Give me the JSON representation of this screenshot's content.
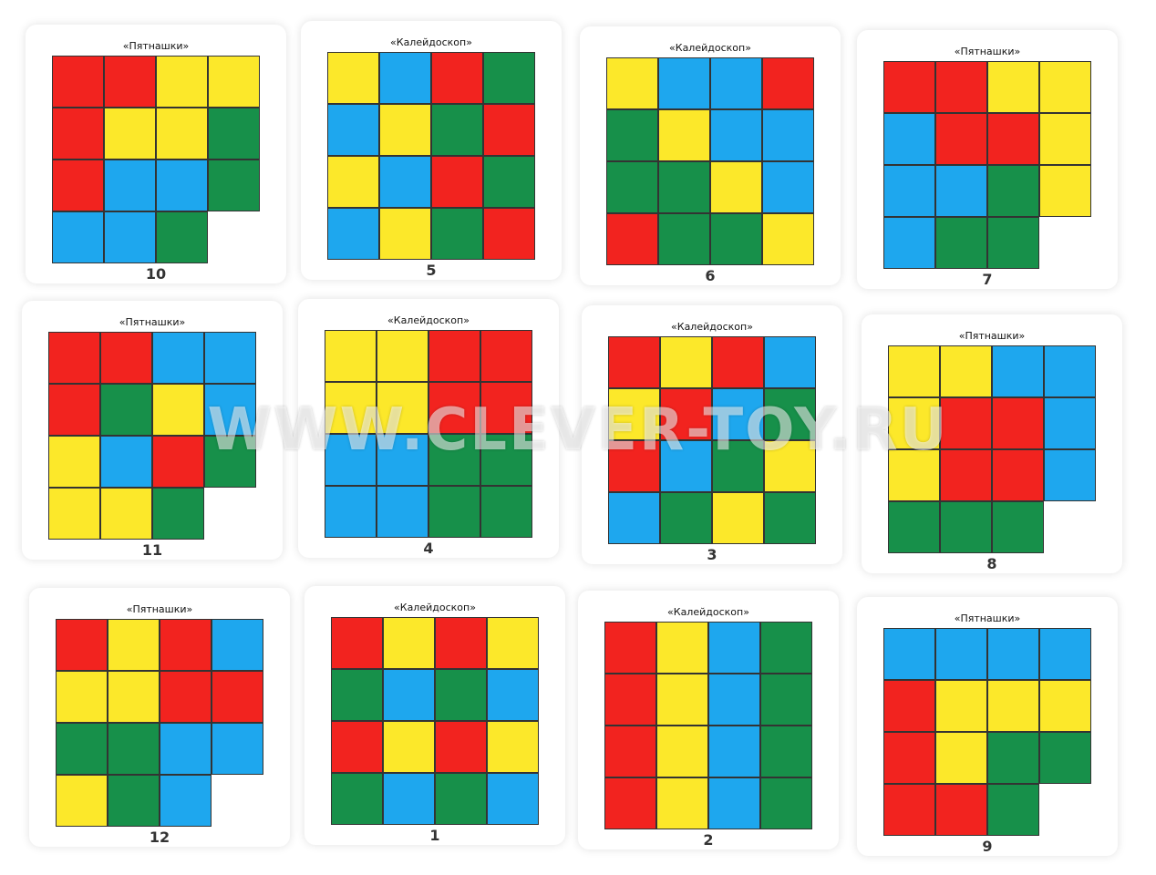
{
  "colors": {
    "R": "#f2231f",
    "Y": "#fce82a",
    "B": "#1ea7ee",
    "G": "#17904a"
  },
  "watermark": "WWW.CLEVER-TOY.RU",
  "cards": [
    {
      "title": "«Пятнашки»",
      "number": "10",
      "grid": [
        "RRYY",
        "RYYG",
        "RBBG",
        "BBG_"
      ]
    },
    {
      "title": "«Калейдоскоп»",
      "number": "5",
      "grid": [
        "YBRG",
        "BYGR",
        "YBRG",
        "BYGR"
      ]
    },
    {
      "title": "«Калейдоскоп»",
      "number": "6",
      "grid": [
        "YBBR",
        "GYBB",
        "GGYB",
        "RGGY"
      ]
    },
    {
      "title": "«Пятнашки»",
      "number": "7",
      "grid": [
        "RRYY",
        "BRRY",
        "BBGY",
        "BGG_"
      ]
    },
    {
      "title": "«Пятнашки»",
      "number": "11",
      "grid": [
        "RRBB",
        "RGYB",
        "YBRG",
        "YYG_"
      ]
    },
    {
      "title": "«Калейдоскоп»",
      "number": "4",
      "grid": [
        "YYRR",
        "YYRR",
        "BBGG",
        "BBGG"
      ]
    },
    {
      "title": "«Калейдоскоп»",
      "number": "3",
      "grid": [
        "RYRB",
        "YRBG",
        "RBGY",
        "BGYG"
      ]
    },
    {
      "title": "«Пятнашки»",
      "number": "8",
      "grid": [
        "YYBB",
        "YRRB",
        "YRRB",
        "GGG_"
      ]
    },
    {
      "title": "«Пятнашки»",
      "number": "12",
      "grid": [
        "RYRB",
        "YYRR",
        "GGBB",
        "YGB_"
      ]
    },
    {
      "title": "«Калейдоскоп»",
      "number": "1",
      "grid": [
        "RYRY",
        "GBGB",
        "RYRY",
        "GBGB"
      ]
    },
    {
      "title": "«Калейдоскоп»",
      "number": "2",
      "grid": [
        "RYBG",
        "RYBG",
        "RYBG",
        "RYBG"
      ]
    },
    {
      "title": "«Пятнашки»",
      "number": "9",
      "grid": [
        "BBBB",
        "RYYY",
        "RYGG",
        "RRG_"
      ]
    }
  ]
}
